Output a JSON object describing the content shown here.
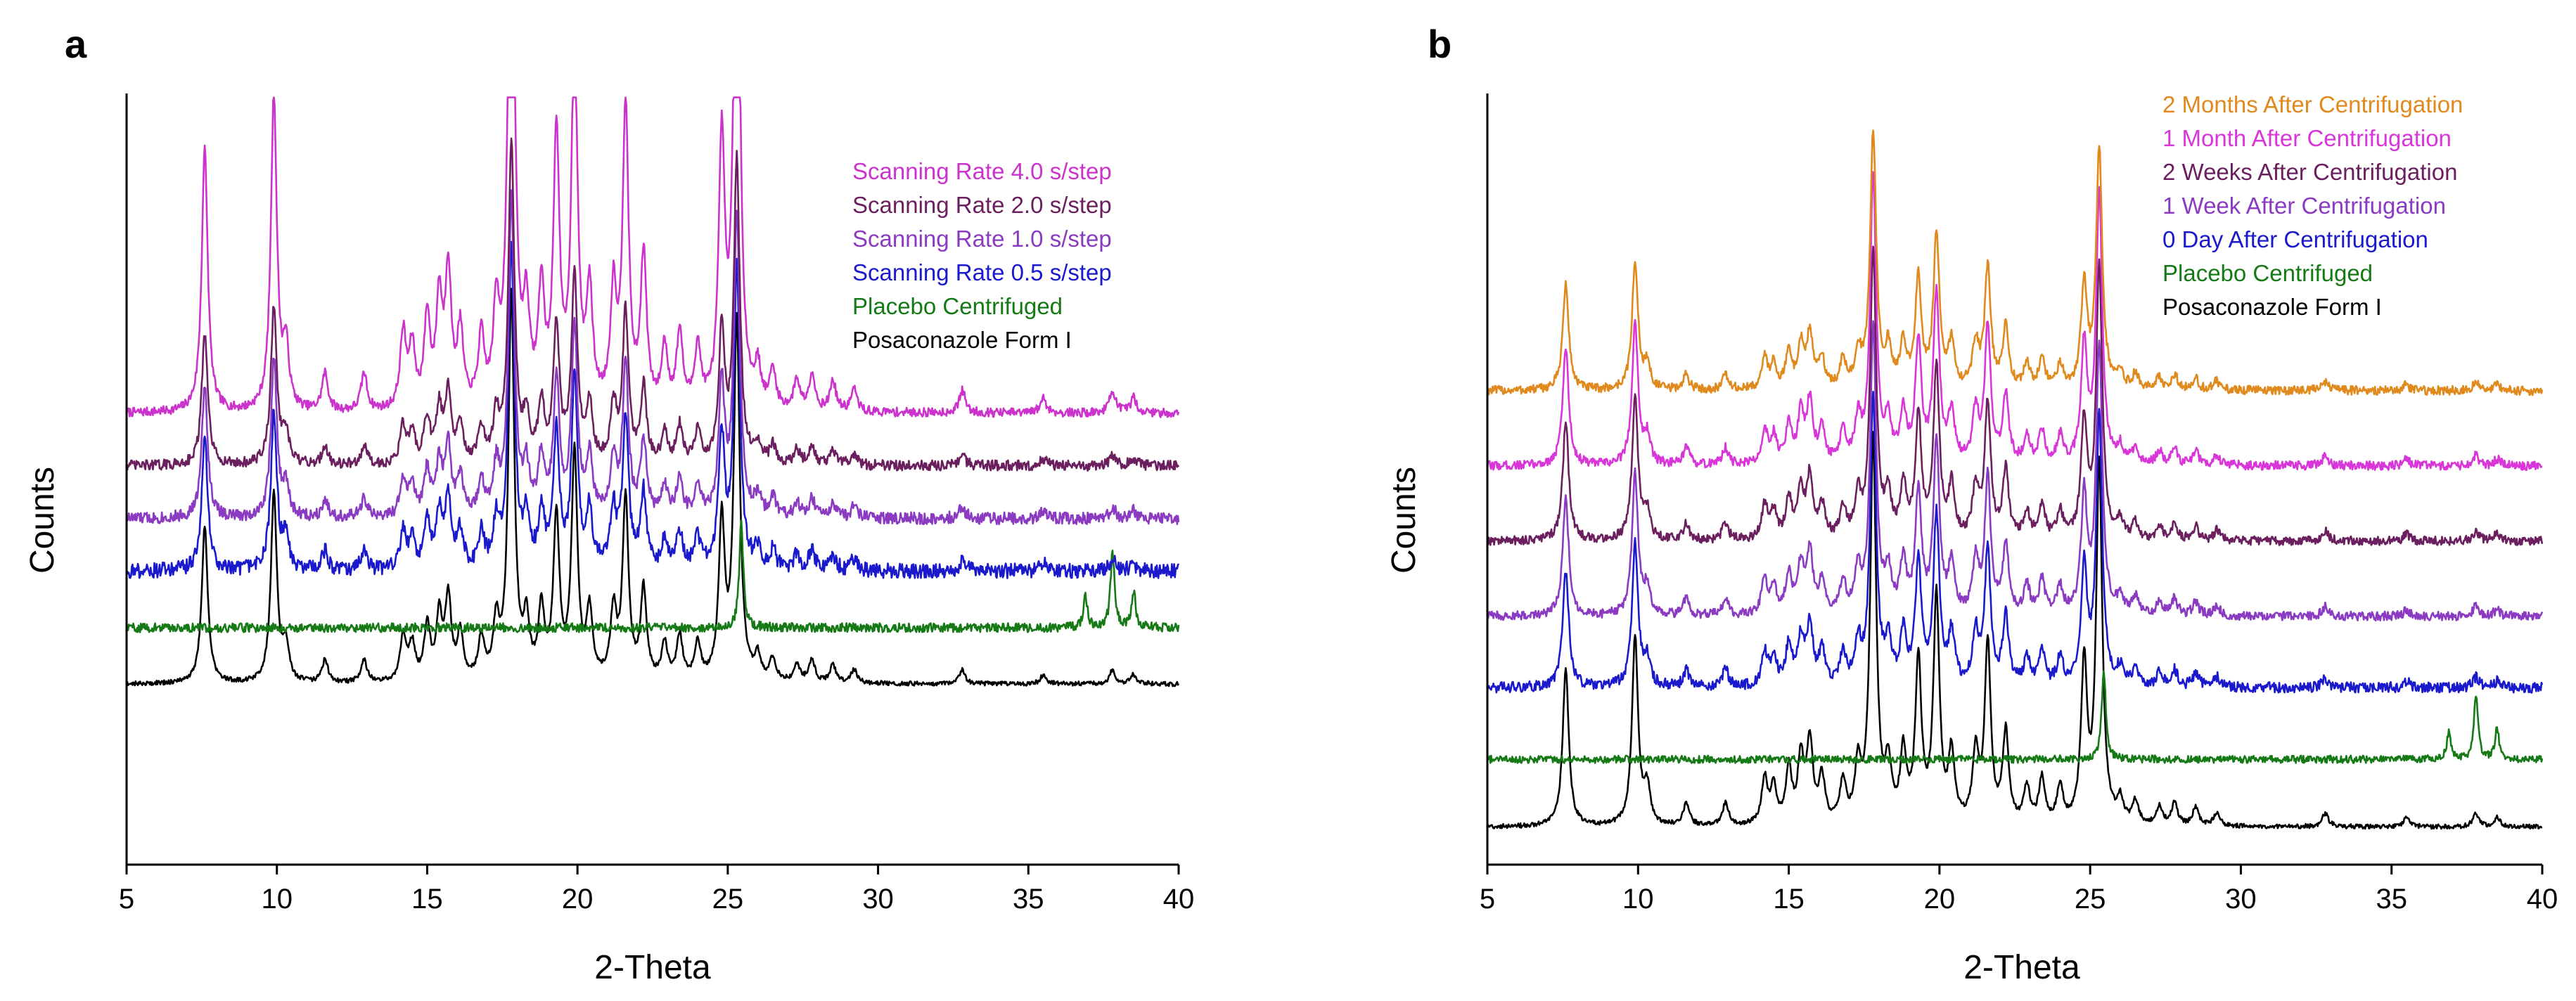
{
  "chart_data": [
    {
      "type": "line",
      "panel_label": "a",
      "xlabel": "2-Theta",
      "ylabel": "Counts",
      "xlim": [
        5,
        40
      ],
      "xticks": [
        5,
        10,
        15,
        20,
        25,
        30,
        35,
        40
      ],
      "y_axis_ticks": false,
      "legend_position": "top-right",
      "offset_stacked": true,
      "series": [
        {
          "name": "Scanning Rate 4.0 s/step",
          "color": "#cc33cc",
          "baseline": 0.6,
          "scale": 1.0,
          "noise": 0.006
        },
        {
          "name": "Scanning Rate 2.0 s/step",
          "color": "#6b1f5e",
          "baseline": 0.53,
          "scale": 0.5,
          "noise": 0.007
        },
        {
          "name": "Scanning Rate 1.0 s/step",
          "color": "#8a3bc2",
          "baseline": 0.46,
          "scale": 0.5,
          "noise": 0.008
        },
        {
          "name": "Scanning Rate 0.5 s/step",
          "color": "#1a1acc",
          "baseline": 0.39,
          "scale": 0.5,
          "noise": 0.01
        },
        {
          "name": "Placebo Centrifuged",
          "color": "#157a15",
          "baseline": 0.315,
          "scale": 0.14,
          "noise": 0.006,
          "placebo": true
        },
        {
          "name": "Posaconazole Form I",
          "color": "#000000",
          "baseline": 0.24,
          "scale": 0.6,
          "noise": 0.003
        }
      ]
    },
    {
      "type": "line",
      "panel_label": "b",
      "xlabel": "2-Theta",
      "ylabel": "Counts",
      "xlim": [
        5,
        40
      ],
      "xticks": [
        5,
        10,
        15,
        20,
        25,
        30,
        35,
        40
      ],
      "y_axis_ticks": false,
      "legend_position": "top-right",
      "offset_stacked": true,
      "series": [
        {
          "name": "2 Months After Centrifugation",
          "color": "#e08a1e",
          "baseline": 0.63,
          "scale": 0.4,
          "noise": 0.006
        },
        {
          "name": "1 Month After Centrifugation",
          "color": "#d936d9",
          "baseline": 0.53,
          "scale": 0.45,
          "noise": 0.006
        },
        {
          "name": "2 Weeks After Centrifugation",
          "color": "#6b1f5e",
          "baseline": 0.43,
          "scale": 0.45,
          "noise": 0.006
        },
        {
          "name": "1 Week After Centrifugation",
          "color": "#8a3bc2",
          "baseline": 0.33,
          "scale": 0.45,
          "noise": 0.006
        },
        {
          "name": "0 Day After Centrifugation",
          "color": "#1a1acc",
          "baseline": 0.235,
          "scale": 0.45,
          "noise": 0.007
        },
        {
          "name": "Placebo Centrifuged",
          "color": "#157a15",
          "baseline": 0.14,
          "scale": 0.12,
          "noise": 0.005,
          "placebo": true
        },
        {
          "name": "Posaconazole Form I",
          "color": "#000000",
          "baseline": 0.05,
          "scale": 0.6,
          "noise": 0.003
        }
      ]
    }
  ],
  "posaconazole_peaks": [
    [
      7.6,
      0.35
    ],
    [
      9.9,
      0.42
    ],
    [
      10.3,
      0.08
    ],
    [
      11.6,
      0.05
    ],
    [
      12.9,
      0.05
    ],
    [
      14.2,
      0.1
    ],
    [
      14.5,
      0.08
    ],
    [
      15.0,
      0.12
    ],
    [
      15.4,
      0.14
    ],
    [
      15.7,
      0.18
    ],
    [
      16.1,
      0.1
    ],
    [
      16.8,
      0.09
    ],
    [
      17.3,
      0.12
    ],
    [
      17.8,
      0.85
    ],
    [
      18.3,
      0.12
    ],
    [
      18.8,
      0.15
    ],
    [
      19.3,
      0.36
    ],
    [
      19.9,
      0.5
    ],
    [
      20.4,
      0.15
    ],
    [
      21.2,
      0.15
    ],
    [
      21.6,
      0.4
    ],
    [
      22.2,
      0.2
    ],
    [
      22.9,
      0.08
    ],
    [
      23.4,
      0.1
    ],
    [
      24.0,
      0.08
    ],
    [
      24.8,
      0.35
    ],
    [
      25.3,
      0.8
    ],
    [
      26.0,
      0.05
    ],
    [
      26.5,
      0.05
    ],
    [
      27.3,
      0.04
    ],
    [
      27.8,
      0.05
    ],
    [
      28.5,
      0.04
    ],
    [
      29.2,
      0.03
    ],
    [
      32.8,
      0.03
    ],
    [
      35.5,
      0.02
    ],
    [
      37.8,
      0.03
    ],
    [
      38.5,
      0.02
    ]
  ],
  "placebo_peaks": [
    [
      25.45,
      1.0
    ],
    [
      36.9,
      0.3
    ],
    [
      37.8,
      0.72
    ],
    [
      38.5,
      0.35
    ]
  ]
}
